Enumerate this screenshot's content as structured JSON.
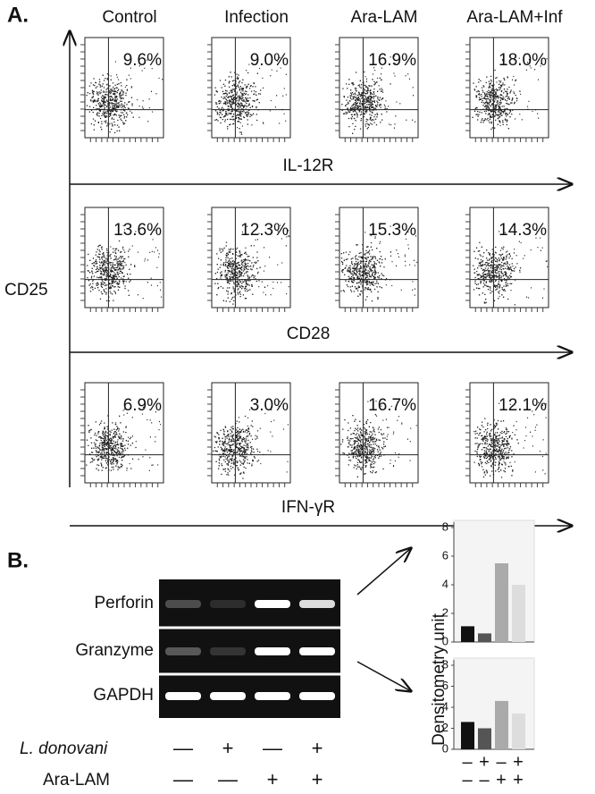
{
  "panel_a": {
    "label": "A.",
    "y_axis": "CD25",
    "columns": [
      "Control",
      "Infection",
      "Ara-LAM",
      "Ara-LAM+Inf"
    ],
    "rows": [
      {
        "x_axis": "IL-12R",
        "percentages": [
          "9.6%",
          "9.0%",
          "16.9%",
          "18.0%"
        ]
      },
      {
        "x_axis": "CD28",
        "percentages": [
          "13.6%",
          "12.3%",
          "15.3%",
          "14.3%"
        ]
      },
      {
        "x_axis": "IFN-γR",
        "percentages": [
          "6.9%",
          "3.0%",
          "16.7%",
          "12.1%"
        ]
      }
    ]
  },
  "panel_b": {
    "label": "B.",
    "genes": [
      "Perforin",
      "Granzyme",
      "GAPDH"
    ],
    "conditions": [
      {
        "name": "L. donovani",
        "signs": [
          "—",
          "+",
          "—",
          "+"
        ]
      },
      {
        "name": "Ara-LAM",
        "signs": [
          "—",
          "—",
          "+",
          "+"
        ]
      }
    ],
    "chart_y_axis": "Densitometry unit",
    "charts": [
      {
        "type": "bar",
        "ylim": [
          0,
          8
        ],
        "yticks": [
          0,
          2,
          4,
          6,
          8
        ],
        "values": [
          1.1,
          0.6,
          5.5,
          4.0
        ],
        "colors": [
          "#111111",
          "#555555",
          "#aaaaaa",
          "#dddddd"
        ]
      },
      {
        "type": "bar",
        "ylim": [
          0,
          8
        ],
        "yticks": [
          0,
          2,
          4,
          6,
          8
        ],
        "values": [
          2.6,
          2.0,
          4.6,
          3.4
        ],
        "colors": [
          "#111111",
          "#555555",
          "#aaaaaa",
          "#dddddd"
        ]
      }
    ],
    "chart_x_signs": [
      [
        "–",
        "+",
        "–",
        "+"
      ],
      [
        "–",
        "–",
        "+",
        "+"
      ]
    ]
  }
}
